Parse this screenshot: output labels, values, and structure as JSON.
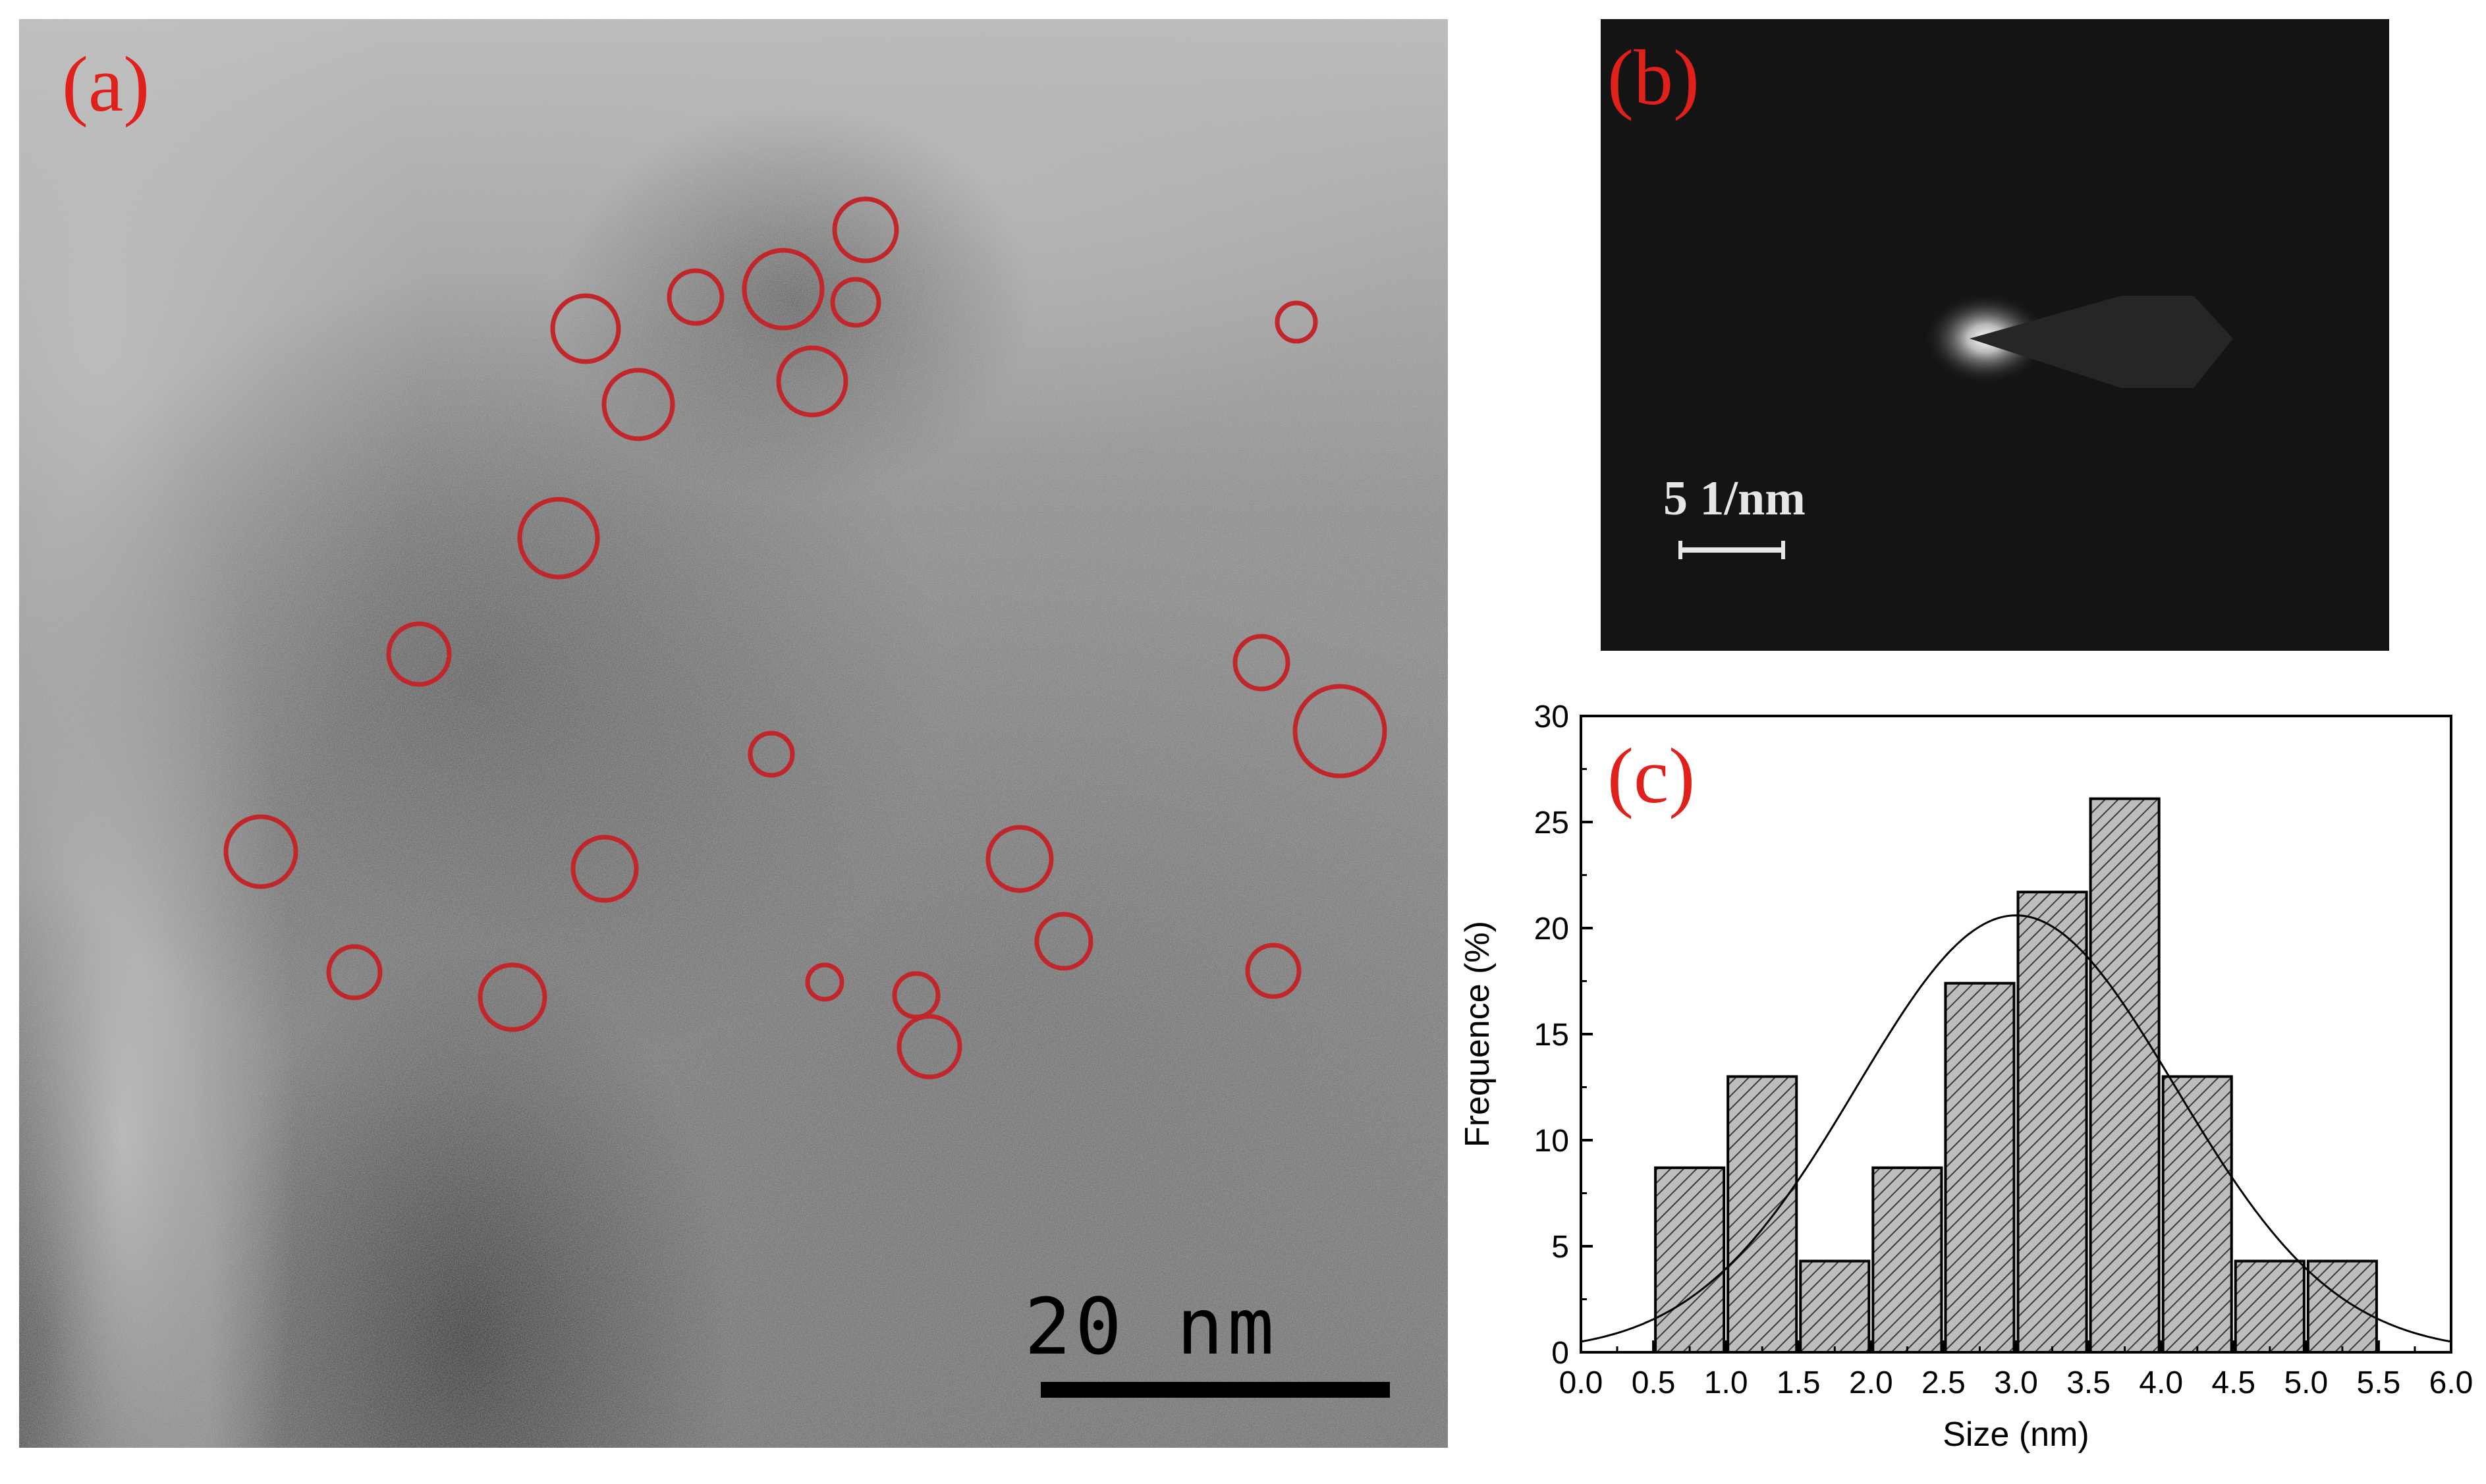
{
  "figure": {
    "panel_a": {
      "label": "(a)",
      "scale_bar": "20 nm"
    },
    "panel_b": {
      "label": "(b)",
      "scale_bar": "5  1/nm"
    },
    "panel_c": {
      "label": "(c)"
    },
    "label_color": "#e0201b",
    "circle_color": "#c0262a"
  },
  "chart_data": {
    "type": "bar",
    "xlabel": "Size (nm)",
    "ylabel": "Frequence (%)",
    "xlim": [
      0.0,
      6.0
    ],
    "ylim": [
      0,
      30
    ],
    "xticks": [
      "0.0",
      "0.5",
      "1.0",
      "1.5",
      "2.0",
      "2.5",
      "3.0",
      "3.5",
      "4.0",
      "4.5",
      "5.0",
      "5.5",
      "6.0"
    ],
    "yticks": [
      "0",
      "5",
      "10",
      "15",
      "20",
      "25",
      "30"
    ],
    "bins": [
      {
        "x0": 0.5,
        "x1": 1.0,
        "value": 8.7
      },
      {
        "x0": 1.0,
        "x1": 1.5,
        "value": 13.0
      },
      {
        "x0": 1.5,
        "x1": 2.0,
        "value": 4.3
      },
      {
        "x0": 2.0,
        "x1": 2.5,
        "value": 8.7
      },
      {
        "x0": 2.5,
        "x1": 3.0,
        "value": 17.4
      },
      {
        "x0": 3.0,
        "x1": 3.5,
        "value": 21.7
      },
      {
        "x0": 3.5,
        "x1": 4.0,
        "value": 26.1
      },
      {
        "x0": 4.0,
        "x1": 4.5,
        "value": 13.0
      },
      {
        "x0": 4.5,
        "x1": 5.0,
        "value": 4.3
      },
      {
        "x0": 5.0,
        "x1": 5.5,
        "value": 4.3
      }
    ],
    "fit": {
      "type": "gaussian",
      "mean": 3.0,
      "sigma": 1.1,
      "peak": 20.6
    },
    "bar_fill": "hatched gray",
    "grid": false,
    "legend": "none"
  }
}
